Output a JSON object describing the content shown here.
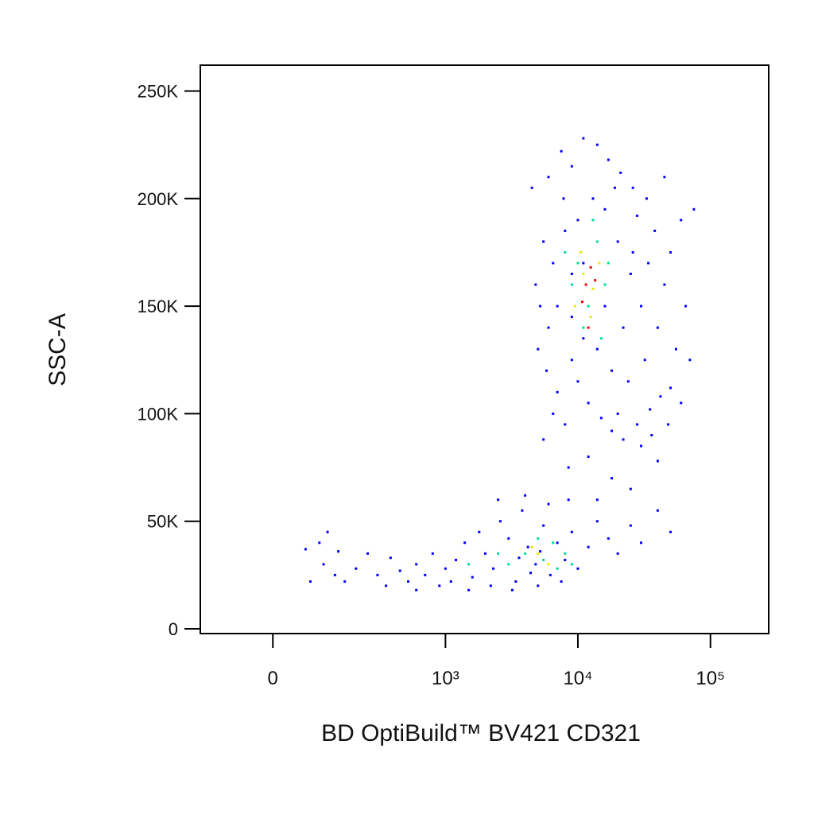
{
  "chart_data": {
    "type": "scatter",
    "x_label": "BD OptiBuild™ BV421 CD321",
    "y_label": "SSC-A",
    "xscale": "biexponential",
    "xlim": [
      -162,
      275000
    ],
    "ylim": [
      -2200,
      262000
    ],
    "xticks": [
      0,
      {
        "value": 1000,
        "label": "10³"
      },
      {
        "value": 10000,
        "label": "10⁴"
      },
      {
        "value": 100000,
        "label": "10⁵"
      }
    ],
    "yticks": [
      0,
      {
        "value": 50000,
        "label": "50K"
      },
      {
        "value": 100000,
        "label": "100K"
      },
      {
        "value": 150000,
        "label": "150K"
      },
      {
        "value": 200000,
        "label": "200K"
      },
      {
        "value": 250000,
        "label": "250K"
      }
    ],
    "series": [
      {
        "color": "#0000ff",
        "x": [
          6000,
          7500,
          9000,
          11000,
          14000,
          17000,
          21000,
          26000,
          33000,
          45000,
          60000,
          75000,
          4500,
          5500,
          6500,
          4800,
          5200,
          6000,
          5000,
          5800,
          7000,
          6500,
          8000,
          5500,
          9000,
          10000,
          12000,
          15000,
          18000,
          22000,
          28000,
          35000,
          42000,
          50000,
          60000,
          70000,
          55000,
          40000,
          30000,
          25000,
          20000,
          16000,
          13000,
          10000,
          8000,
          7000,
          9000,
          11000,
          14000,
          18000,
          24000,
          32000,
          45000,
          50000,
          38000,
          28000,
          8500,
          12000,
          18000,
          25000,
          30000,
          40000,
          14000,
          9000,
          22000,
          65000,
          48000,
          36000,
          20000,
          16000,
          11000,
          7800,
          19000,
          26000,
          34000,
          60,
          90,
          100,
          130,
          160,
          200,
          250,
          300,
          380,
          450,
          520,
          600,
          700,
          800,
          900,
          1000,
          1200,
          1400,
          1600,
          1800,
          2000,
          2300,
          2600,
          3000,
          3400,
          3800,
          4200,
          4800,
          5500,
          6200,
          7000,
          8000,
          9000,
          10000,
          12000,
          14000,
          17000,
          20000,
          25000,
          30000,
          40000,
          50000,
          2500,
          4000,
          6000,
          3200,
          5000,
          7500,
          1500,
          2200,
          70,
          110,
          140,
          350,
          600,
          1100,
          8500,
          3600,
          4400,
          5200
        ],
        "y": [
          210000,
          222000,
          215000,
          228000,
          225000,
          218000,
          212000,
          205000,
          200000,
          210000,
          190000,
          195000,
          205000,
          180000,
          170000,
          160000,
          150000,
          140000,
          130000,
          120000,
          110000,
          100000,
          95000,
          88000,
          125000,
          115000,
          105000,
          98000,
          92000,
          88000,
          95000,
          102000,
          108000,
          112000,
          105000,
          125000,
          130000,
          140000,
          150000,
          165000,
          180000,
          195000,
          200000,
          190000,
          185000,
          150000,
          145000,
          135000,
          130000,
          120000,
          115000,
          125000,
          160000,
          175000,
          185000,
          192000,
          75000,
          80000,
          70000,
          65000,
          85000,
          78000,
          60000,
          165000,
          140000,
          150000,
          95000,
          90000,
          100000,
          150000,
          170000,
          200000,
          205000,
          175000,
          170000,
          37000,
          40000,
          30000,
          25000,
          22000,
          28000,
          35000,
          25000,
          33000,
          27000,
          22000,
          30000,
          25000,
          35000,
          20000,
          28000,
          32000,
          40000,
          24000,
          45000,
          35000,
          28000,
          50000,
          42000,
          22000,
          55000,
          38000,
          30000,
          48000,
          25000,
          40000,
          32000,
          45000,
          28000,
          38000,
          50000,
          42000,
          35000,
          48000,
          40000,
          55000,
          45000,
          60000,
          62000,
          58000,
          18000,
          20000,
          22000,
          18000,
          20000,
          22000,
          45000,
          36000,
          20000,
          18000,
          22000,
          60000,
          33000,
          26000,
          36000
        ]
      },
      {
        "color": "#00e08c",
        "x": [
          10000,
          12000,
          14000,
          9000,
          16000,
          11000,
          13000,
          8000,
          15000,
          17000,
          4000,
          5500,
          6500,
          3000,
          7000,
          2500,
          5000,
          8000,
          1500,
          9000
        ],
        "y": [
          170000,
          150000,
          180000,
          160000,
          160000,
          140000,
          190000,
          175000,
          135000,
          170000,
          35000,
          32000,
          40000,
          30000,
          28000,
          35000,
          42000,
          35000,
          30000,
          30000
        ]
      },
      {
        "color": "#e8e800",
        "x": [
          11000,
          13000,
          10500,
          12500,
          14500,
          9500,
          5000,
          6000,
          4500
        ],
        "y": [
          165000,
          158000,
          175000,
          145000,
          170000,
          150000,
          35000,
          30000,
          38000
        ]
      },
      {
        "color": "#ff0000",
        "x": [
          11500,
          12500,
          10800,
          13500,
          12000
        ],
        "y": [
          160000,
          168000,
          152000,
          162000,
          140000
        ]
      }
    ]
  }
}
